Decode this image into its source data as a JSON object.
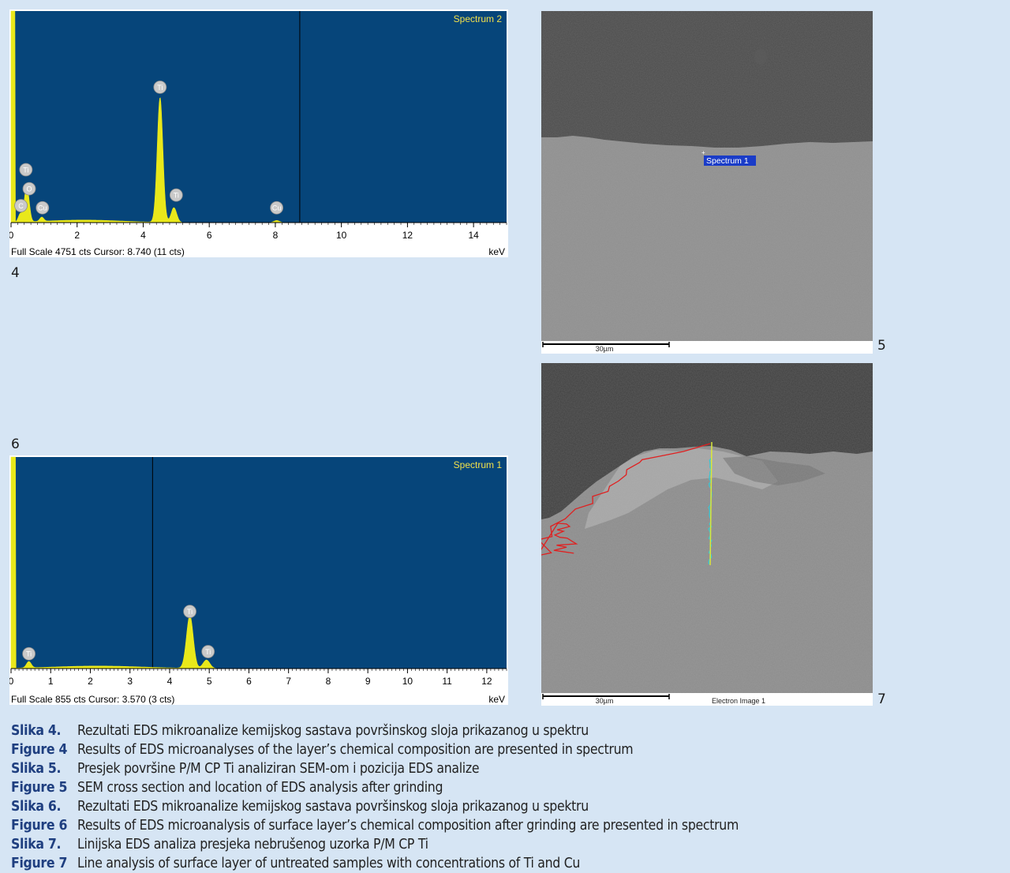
{
  "figures": {
    "fig4": {
      "number": "4",
      "spectrum_label": "Spectrum 2",
      "footer_left": "Full Scale 4751 cts Cursor: 8.740  (11 cts)",
      "footer_unit": "keV"
    },
    "fig5": {
      "number": "5",
      "spectrum_marker": "Spectrum 1",
      "scale_bar": "30µm"
    },
    "fig6": {
      "number": "6",
      "spectrum_label": "Spectrum 1",
      "footer_left": "Full Scale 855 cts Cursor: 3.570  (3 cts)",
      "footer_unit": "keV"
    },
    "fig7": {
      "number": "7",
      "scale_bar": "30µm",
      "image_label": "Electron Image 1"
    }
  },
  "colors": {
    "spectrum_bg": "#06457a",
    "spectrum_fill": "#e9e81a",
    "spectrum_text": "#f0e14a",
    "line_scan_red": "#e02020",
    "line_scan_cyan": "#3cc8d0",
    "line_scan_yellow": "#d9e83a"
  },
  "chart_data": [
    {
      "type": "area",
      "spectrum_label": "Spectrum 2",
      "xlim": [
        0,
        15
      ],
      "x_ticks": [
        0,
        2,
        4,
        6,
        8,
        10,
        12,
        14
      ],
      "x_tick_labels": [
        "0",
        "2",
        "4",
        "6",
        "8",
        "10",
        "12",
        "14"
      ],
      "xlabel": "keV",
      "full_scale_cts": 4751,
      "cursor_kev": 8.74,
      "cursor_cts": 11,
      "peaks": [
        {
          "element": "C",
          "kev": 0.28,
          "height": 0.04
        },
        {
          "element": "Ti",
          "kev": 0.45,
          "height": 0.12
        },
        {
          "element": "O",
          "kev": 0.52,
          "height": 0.08
        },
        {
          "element": "Cu",
          "kev": 0.93,
          "height": 0.02
        },
        {
          "element": "Ti",
          "kev": 4.51,
          "height": 0.59
        },
        {
          "element": "Ti",
          "kev": 4.93,
          "height": 0.07
        },
        {
          "element": "Cu",
          "kev": 8.04,
          "height": 0.01
        }
      ],
      "peak_labels": [
        {
          "text": "C",
          "kev": 0.3,
          "label_height": 0.08
        },
        {
          "text": "Ti",
          "kev": 0.45,
          "label_height": 0.25
        },
        {
          "text": "O",
          "kev": 0.55,
          "label_height": 0.16
        },
        {
          "text": "Cu",
          "kev": 0.95,
          "label_height": 0.07
        },
        {
          "text": "Ti",
          "kev": 4.51,
          "label_height": 0.64
        },
        {
          "text": "Ti",
          "kev": 5.0,
          "label_height": 0.13
        },
        {
          "text": "Cu",
          "kev": 8.04,
          "label_height": 0.07
        }
      ]
    },
    {
      "type": "area",
      "spectrum_label": "Spectrum 1",
      "xlim": [
        0,
        12.5
      ],
      "x_ticks": [
        0,
        1,
        2,
        3,
        4,
        5,
        6,
        7,
        8,
        9,
        10,
        11,
        12
      ],
      "x_tick_labels": [
        "0",
        "1",
        "2",
        "3",
        "4",
        "5",
        "6",
        "7",
        "8",
        "9",
        "10",
        "11",
        "12"
      ],
      "xlabel": "keV",
      "full_scale_cts": 855,
      "cursor_kev": 3.57,
      "cursor_cts": 3,
      "peaks": [
        {
          "element": "Ti",
          "kev": 0.45,
          "height": 0.03
        },
        {
          "element": "Ti",
          "kev": 4.51,
          "height": 0.25
        },
        {
          "element": "Ti",
          "kev": 4.93,
          "height": 0.04
        }
      ],
      "peak_labels": [
        {
          "text": "Ti",
          "kev": 0.45,
          "label_height": 0.07
        },
        {
          "text": "Ti",
          "kev": 4.51,
          "label_height": 0.27
        },
        {
          "text": "Ti",
          "kev": 4.97,
          "label_height": 0.08
        }
      ]
    }
  ],
  "captions": [
    {
      "label": "Slika 4.",
      "text": "Rezultati EDS mikroanalize kemijskog sastava površinskog sloja prikazanog u spektru"
    },
    {
      "label": "Figure 4",
      "text": "Results of EDS microanalyses of the layer’s chemical composition are presented in spectrum"
    },
    {
      "label": "Slika 5.",
      "text": "Presjek površine P/M CP Ti analiziran SEM-om i pozicija EDS analize"
    },
    {
      "label": "Figure 5",
      "text": "SEM cross section and location of EDS analysis after grinding"
    },
    {
      "label": "Slika 6.",
      "text": "Rezultati EDS mikroanalize kemijskog sastava površinskog sloja prikazanog u spektru"
    },
    {
      "label": "Figure 6",
      "text": "Results of EDS microanalysis of surface layer’s chemical composition after grinding are presented in spectrum"
    },
    {
      "label": "Slika 7.",
      "text": "Linijska EDS analiza presjeka nebrušenog uzorka P/M CP Ti"
    },
    {
      "label": "Figure 7",
      "text": "Line analysis of surface layer of untreated samples with concentrations of Ti and Cu"
    }
  ]
}
